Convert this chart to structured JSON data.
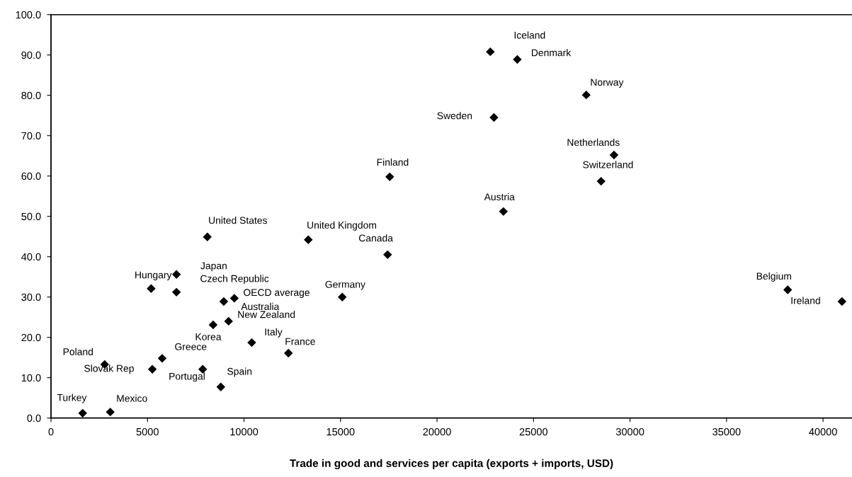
{
  "chart_data": {
    "type": "scatter",
    "xlabel": "Trade in good and services per capita (exports + imports, USD)",
    "xlim": [
      0,
      41500
    ],
    "xticks": [
      0,
      5000,
      10000,
      15000,
      20000,
      25000,
      30000,
      35000,
      40000
    ],
    "ylim": [
      0,
      100
    ],
    "yticks": [
      {
        "value": 0,
        "label": "0.0"
      },
      {
        "value": 10,
        "label": "10.0"
      },
      {
        "value": 20,
        "label": "20.0"
      },
      {
        "value": 30,
        "label": "30.0"
      },
      {
        "value": 40,
        "label": "40.0"
      },
      {
        "value": 50,
        "label": "50.0"
      },
      {
        "value": 60,
        "label": "60.0"
      },
      {
        "value": 70,
        "label": "70.0"
      },
      {
        "value": 80,
        "label": "80.0"
      },
      {
        "value": 90,
        "label": "90.0"
      },
      {
        "value": 100,
        "label": "100.0"
      }
    ],
    "grid": false,
    "marker": "diamond",
    "series": [
      {
        "color": "#000000",
        "x": [
          8100,
          6500,
          5190,
          6500,
          8950,
          9500,
          9200,
          8400,
          10400,
          12300,
          5760,
          2780,
          5250,
          7860,
          8800,
          1640,
          3070,
          13330,
          17440,
          15090,
          22760,
          24160,
          27730,
          22950,
          29170,
          28500,
          17550,
          23440,
          38170,
          40980
        ],
        "values": [
          44.9,
          35.6,
          32.1,
          31.2,
          28.9,
          29.7,
          24.0,
          23.1,
          18.7,
          16.1,
          14.8,
          13.3,
          12.1,
          12.1,
          7.7,
          1.2,
          1.5,
          44.2,
          40.5,
          30.0,
          90.8,
          88.9,
          80.1,
          74.5,
          65.2,
          58.7,
          59.8,
          51.2,
          31.8,
          28.9
        ]
      }
    ],
    "annotations": [
      {
        "text": "United States",
        "x": 8100,
        "y": 44.9
      },
      {
        "text": "Japan",
        "x": 6500,
        "y": 35.6
      },
      {
        "text": "Hungary",
        "x": 5190,
        "y": 32.1
      },
      {
        "text": "Czech Republic",
        "x": 6500,
        "y": 31.2
      },
      {
        "text": "Australia",
        "x": 8950,
        "y": 28.9
      },
      {
        "text": "OECD average",
        "x": 9500,
        "y": 29.7
      },
      {
        "text": "New Zealand",
        "x": 9200,
        "y": 24.0
      },
      {
        "text": "Korea",
        "x": 8400,
        "y": 23.1
      },
      {
        "text": "Italy",
        "x": 10400,
        "y": 18.7
      },
      {
        "text": "France",
        "x": 12300,
        "y": 16.1
      },
      {
        "text": "Greece",
        "x": 5760,
        "y": 14.8
      },
      {
        "text": "Poland",
        "x": 2780,
        "y": 13.3
      },
      {
        "text": "Slovak Rep",
        "x": 5250,
        "y": 12.1
      },
      {
        "text": "Portugal",
        "x": 7860,
        "y": 12.1
      },
      {
        "text": "Spain",
        "x": 8800,
        "y": 7.7
      },
      {
        "text": "Turkey",
        "x": 1640,
        "y": 1.2
      },
      {
        "text": "Mexico",
        "x": 3070,
        "y": 1.5
      },
      {
        "text": "United Kingdom",
        "x": 13330,
        "y": 44.2
      },
      {
        "text": "Canada",
        "x": 17440,
        "y": 40.5
      },
      {
        "text": "Germany",
        "x": 15090,
        "y": 30.0
      },
      {
        "text": "Iceland",
        "x": 22760,
        "y": 90.8
      },
      {
        "text": "Denmark",
        "x": 24160,
        "y": 88.9
      },
      {
        "text": "Norway",
        "x": 27730,
        "y": 80.1
      },
      {
        "text": "Sweden",
        "x": 22950,
        "y": 74.5
      },
      {
        "text": "Netherlands",
        "x": 29170,
        "y": 65.2
      },
      {
        "text": "Switzerland",
        "x": 28500,
        "y": 58.7
      },
      {
        "text": "Finland",
        "x": 17550,
        "y": 59.8
      },
      {
        "text": "Austria",
        "x": 23440,
        "y": 51.2
      },
      {
        "text": "Belgium",
        "x": 38170,
        "y": 31.8
      },
      {
        "text": "Ireland",
        "x": 40980,
        "y": 28.9
      }
    ]
  }
}
